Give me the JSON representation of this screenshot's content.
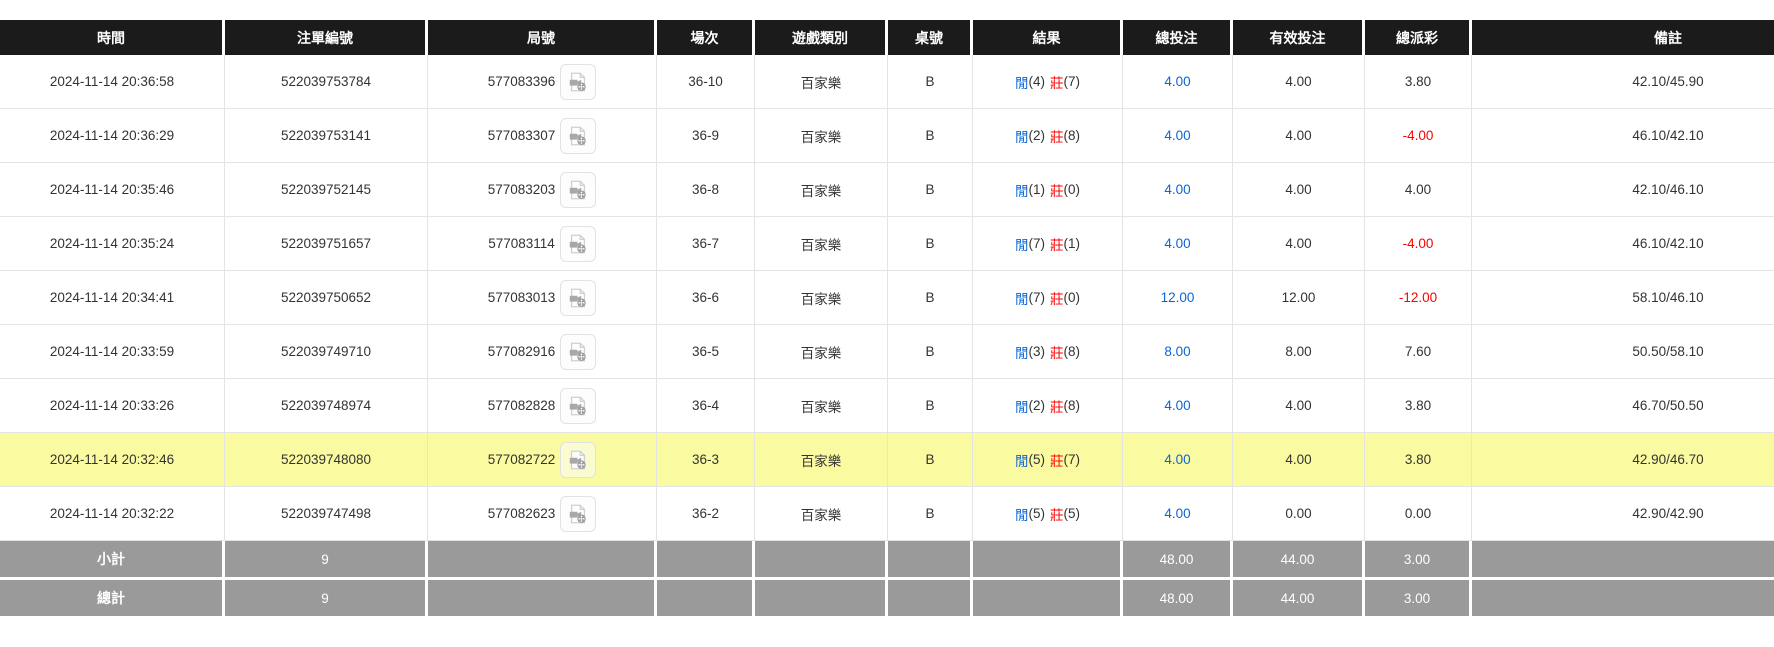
{
  "colors": {
    "header_black": "#1b1b1b",
    "accent_blue": "#0a66d8",
    "loss_red": "#ff0000",
    "highlight_yellow": "#FAFAA0",
    "summary_gray": "#9a9a9a",
    "row_border_gray": "#e4e4e4"
  },
  "icons": {
    "video_replay": "video-replay-icon"
  },
  "table": {
    "columns": [
      {
        "label": "時間"
      },
      {
        "label": "注單編號"
      },
      {
        "label": "局號"
      },
      {
        "label": "場次"
      },
      {
        "label": "遊戲類別"
      },
      {
        "label": "桌號"
      },
      {
        "label": "結果"
      },
      {
        "label": "總投注"
      },
      {
        "label": "有效投注"
      },
      {
        "label": "總派彩"
      },
      {
        "label": "備註"
      }
    ],
    "rows": [
      {
        "time": "2024-11-14 20:36:58",
        "bet_id": "522039753784",
        "round_id": "577083396",
        "session": "36-10",
        "game_type": "百家樂",
        "table_no": "B",
        "result_player_label": "閒",
        "result_player_score": "(4)",
        "result_banker_label": "莊",
        "result_banker_score": "(7)",
        "total_bet": "4.00",
        "valid_bet": "4.00",
        "total_payout": "3.80",
        "remark": "42.10/45.90",
        "highlighted": false
      },
      {
        "time": "2024-11-14 20:36:29",
        "bet_id": "522039753141",
        "round_id": "577083307",
        "session": "36-9",
        "game_type": "百家樂",
        "table_no": "B",
        "result_player_label": "閒",
        "result_player_score": "(2)",
        "result_banker_label": "莊",
        "result_banker_score": "(8)",
        "total_bet": "4.00",
        "valid_bet": "4.00",
        "total_payout": "-4.00",
        "remark": "46.10/42.10",
        "highlighted": false
      },
      {
        "time": "2024-11-14 20:35:46",
        "bet_id": "522039752145",
        "round_id": "577083203",
        "session": "36-8",
        "game_type": "百家樂",
        "table_no": "B",
        "result_player_label": "閒",
        "result_player_score": "(1)",
        "result_banker_label": "莊",
        "result_banker_score": "(0)",
        "total_bet": "4.00",
        "valid_bet": "4.00",
        "total_payout": "4.00",
        "remark": "42.10/46.10",
        "highlighted": false
      },
      {
        "time": "2024-11-14 20:35:24",
        "bet_id": "522039751657",
        "round_id": "577083114",
        "session": "36-7",
        "game_type": "百家樂",
        "table_no": "B",
        "result_player_label": "閒",
        "result_player_score": "(7)",
        "result_banker_label": "莊",
        "result_banker_score": "(1)",
        "total_bet": "4.00",
        "valid_bet": "4.00",
        "total_payout": "-4.00",
        "remark": "46.10/42.10",
        "highlighted": false
      },
      {
        "time": "2024-11-14 20:34:41",
        "bet_id": "522039750652",
        "round_id": "577083013",
        "session": "36-6",
        "game_type": "百家樂",
        "table_no": "B",
        "result_player_label": "閒",
        "result_player_score": "(7)",
        "result_banker_label": "莊",
        "result_banker_score": "(0)",
        "total_bet": "12.00",
        "valid_bet": "12.00",
        "total_payout": "-12.00",
        "remark": "58.10/46.10",
        "highlighted": false
      },
      {
        "time": "2024-11-14 20:33:59",
        "bet_id": "522039749710",
        "round_id": "577082916",
        "session": "36-5",
        "game_type": "百家樂",
        "table_no": "B",
        "result_player_label": "閒",
        "result_player_score": "(3)",
        "result_banker_label": "莊",
        "result_banker_score": "(8)",
        "total_bet": "8.00",
        "valid_bet": "8.00",
        "total_payout": "7.60",
        "remark": "50.50/58.10",
        "highlighted": false
      },
      {
        "time": "2024-11-14 20:33:26",
        "bet_id": "522039748974",
        "round_id": "577082828",
        "session": "36-4",
        "game_type": "百家樂",
        "table_no": "B",
        "result_player_label": "閒",
        "result_player_score": "(2)",
        "result_banker_label": "莊",
        "result_banker_score": "(8)",
        "total_bet": "4.00",
        "valid_bet": "4.00",
        "total_payout": "3.80",
        "remark": "46.70/50.50",
        "highlighted": false
      },
      {
        "time": "2024-11-14 20:32:46",
        "bet_id": "522039748080",
        "round_id": "577082722",
        "session": "36-3",
        "game_type": "百家樂",
        "table_no": "B",
        "result_player_label": "閒",
        "result_player_score": "(5)",
        "result_banker_label": "莊",
        "result_banker_score": "(7)",
        "total_bet": "4.00",
        "valid_bet": "4.00",
        "total_payout": "3.80",
        "remark": "42.90/46.70",
        "highlighted": true
      },
      {
        "time": "2024-11-14 20:32:22",
        "bet_id": "522039747498",
        "round_id": "577082623",
        "session": "36-2",
        "game_type": "百家樂",
        "table_no": "B",
        "result_player_label": "閒",
        "result_player_score": "(5)",
        "result_banker_label": "莊",
        "result_banker_score": "(5)",
        "total_bet": "4.00",
        "valid_bet": "0.00",
        "total_payout": "0.00",
        "remark": "42.90/42.90",
        "highlighted": false
      }
    ],
    "summary_rows": [
      {
        "label": "小計",
        "bet_count": "9",
        "total_bet": "48.00",
        "valid_bet": "44.00",
        "total_payout": "3.00"
      },
      {
        "label": "總計",
        "bet_count": "9",
        "total_bet": "48.00",
        "valid_bet": "44.00",
        "total_payout": "3.00"
      }
    ]
  }
}
